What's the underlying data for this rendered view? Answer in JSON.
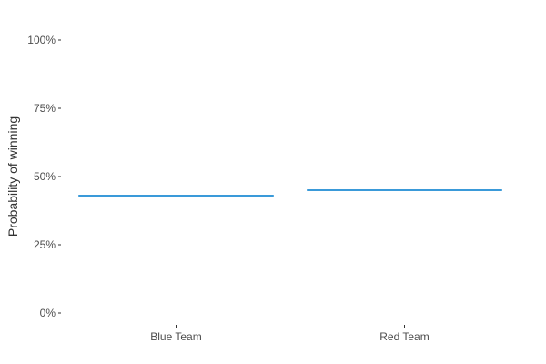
{
  "chart_data": {
    "type": "bar",
    "title": "",
    "xlabel": "",
    "ylabel": "Probability of winning",
    "categories": [
      "Blue Team",
      "Red Team"
    ],
    "values": [
      0.43,
      0.45
    ],
    "ylim": [
      0,
      1
    ],
    "yticks": [
      0,
      0.25,
      0.5,
      0.75,
      1
    ],
    "ytick_labels": [
      "0%",
      "25%",
      "50%",
      "75%",
      "100%"
    ],
    "grid": false,
    "legend": "none",
    "series_color": "#3a9ad9",
    "tick_color": "#333333",
    "axis_text_color": "#4d4d4d"
  }
}
